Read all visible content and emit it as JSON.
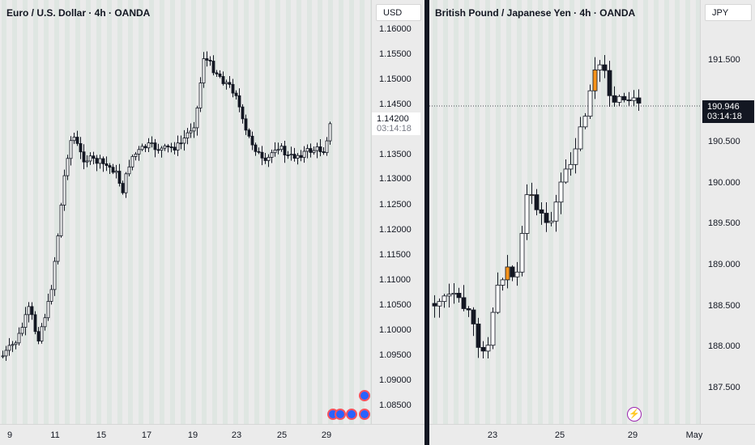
{
  "left": {
    "title": "Euro / U.S. Dollar · 4h · OANDA",
    "currency": "USD",
    "price_label": "1.14200",
    "countdown": "03:14:18",
    "y_labels": [
      "1.16000",
      "1.15500",
      "1.15000",
      "1.14500",
      "1.13500",
      "1.13000",
      "1.12500",
      "1.12000",
      "1.11500",
      "1.11000",
      "1.10500",
      "1.10000",
      "1.09500",
      "1.09000",
      "1.08500"
    ],
    "x_labels": [
      "9",
      "11",
      "15",
      "17",
      "19",
      "23",
      "25",
      "29"
    ]
  },
  "right": {
    "title": "British Pound / Japanese Yen · 4h · OANDA",
    "currency": "JPY",
    "price_label": "190.946",
    "countdown": "03:14:18",
    "y_labels": [
      "191.500",
      "190.500",
      "190.000",
      "189.500",
      "189.000",
      "188.500",
      "188.000",
      "187.500"
    ],
    "x_labels": [
      "23",
      "25",
      "29",
      "May"
    ],
    "event_icon": "lightning-icon"
  },
  "colors": {
    "bg": "#ebebeb",
    "band": "#dfe6e2",
    "bear": "#131722",
    "bull": "#ffffff",
    "highlight": "#f7931a",
    "divider": "#131722",
    "event_flag": "#2962ff",
    "event_ring": "#9c27b0"
  }
}
